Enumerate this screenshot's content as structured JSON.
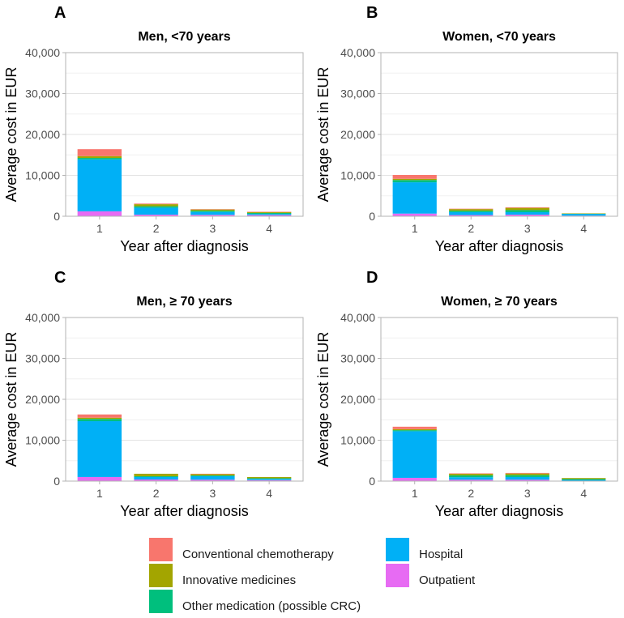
{
  "chart_data": {
    "type": "bar",
    "stacked": true,
    "categories": [
      "1",
      "2",
      "3",
      "4"
    ],
    "xlabel": "Year after diagnosis",
    "ylabel": "Average cost in EUR",
    "ylim": [
      0,
      40000
    ],
    "yticks": [
      0,
      10000,
      20000,
      30000,
      40000
    ],
    "ytick_labels": [
      "0",
      "10,000",
      "20,000",
      "30,000",
      "40,000"
    ],
    "grid": true,
    "legend_position": "bottom",
    "stack_order": [
      "Outpatient",
      "Hospital",
      "Other medication (possible CRC)",
      "Innovative medicines",
      "Conventional chemotherapy"
    ],
    "colors": {
      "Conventional chemotherapy": "#F8766D",
      "Innovative medicines": "#A3A500",
      "Other medication (possible CRC)": "#00BF7D",
      "Hospital": "#00B0F6",
      "Outpatient": "#E76BF3"
    },
    "panels": [
      {
        "letter": "A",
        "title": "Men, <70 years",
        "series": [
          {
            "name": "Outpatient",
            "values": [
              1200,
              400,
              350,
              300
            ]
          },
          {
            "name": "Hospital",
            "values": [
              12700,
              1700,
              700,
              250
            ]
          },
          {
            "name": "Other medication (possible CRC)",
            "values": [
              350,
              350,
              300,
              250
            ]
          },
          {
            "name": "Innovative medicines",
            "values": [
              450,
              500,
              300,
              250
            ]
          },
          {
            "name": "Conventional chemotherapy",
            "values": [
              1700,
              150,
              100,
              50
            ]
          }
        ]
      },
      {
        "letter": "B",
        "title": "Women, <70 years",
        "series": [
          {
            "name": "Outpatient",
            "values": [
              650,
              300,
              400,
              150
            ]
          },
          {
            "name": "Hospital",
            "values": [
              7650,
              700,
              600,
              450
            ]
          },
          {
            "name": "Other medication (possible CRC)",
            "values": [
              550,
              350,
              500,
              50
            ]
          },
          {
            "name": "Innovative medicines",
            "values": [
              300,
              400,
              550,
              50
            ]
          },
          {
            "name": "Conventional chemotherapy",
            "values": [
              950,
              100,
              150,
              0
            ]
          }
        ]
      },
      {
        "letter": "C",
        "title": "Men, ≥ 70 years",
        "series": [
          {
            "name": "Outpatient",
            "values": [
              1000,
              400,
              350,
              250
            ]
          },
          {
            "name": "Hospital",
            "values": [
              13650,
              600,
              850,
              300
            ]
          },
          {
            "name": "Other medication (possible CRC)",
            "values": [
              550,
              200,
              200,
              150
            ]
          },
          {
            "name": "Innovative medicines",
            "values": [
              300,
              600,
              350,
              300
            ]
          },
          {
            "name": "Conventional chemotherapy",
            "values": [
              800,
              0,
              50,
              0
            ]
          }
        ]
      },
      {
        "letter": "D",
        "title": "Women, ≥ 70 years",
        "series": [
          {
            "name": "Outpatient",
            "values": [
              800,
              350,
              350,
              100
            ]
          },
          {
            "name": "Hospital",
            "values": [
              11400,
              600,
              650,
              200
            ]
          },
          {
            "name": "Other medication (possible CRC)",
            "values": [
              250,
              450,
              450,
              200
            ]
          },
          {
            "name": "Innovative medicines",
            "values": [
              250,
              400,
              400,
              250
            ]
          },
          {
            "name": "Conventional chemotherapy",
            "values": [
              600,
              100,
              150,
              0
            ]
          }
        ]
      }
    ]
  },
  "legend": {
    "items": [
      {
        "label": "Conventional chemotherapy",
        "color": "#F8766D"
      },
      {
        "label": "Innovative medicines",
        "color": "#A3A500"
      },
      {
        "label": "Other medication (possible CRC)",
        "color": "#00BF7D"
      },
      {
        "label": "Hospital",
        "color": "#00B0F6"
      },
      {
        "label": "Outpatient",
        "color": "#E76BF3"
      }
    ]
  }
}
